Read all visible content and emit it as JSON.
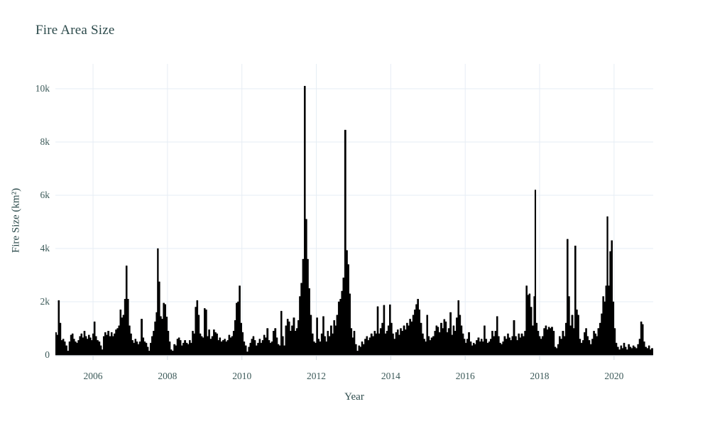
{
  "page": {
    "background": "#ffffff"
  },
  "chart": {
    "title": "Fire Area Size",
    "x_axis_title": "Year",
    "y_axis_title": "Fire Size (km²)"
  },
  "chart_data": {
    "type": "area",
    "title": "Fire Area Size",
    "xlabel": "Year",
    "ylabel": "Fire Size (km²)",
    "legend": null,
    "grid": true,
    "xlim": [
      2004.988,
      2021.052
    ],
    "ylim": [
      0,
      10933
    ],
    "x_ticks": [
      {
        "v": 2006,
        "label": "2006"
      },
      {
        "v": 2008,
        "label": "2008"
      },
      {
        "v": 2010,
        "label": "2010"
      },
      {
        "v": 2012,
        "label": "2012"
      },
      {
        "v": 2014,
        "label": "2014"
      },
      {
        "v": 2016,
        "label": "2016"
      },
      {
        "v": 2018,
        "label": "2018"
      },
      {
        "v": 2020,
        "label": "2020"
      }
    ],
    "y_ticks": [
      {
        "v": 0,
        "label": "0"
      },
      {
        "v": 2000,
        "label": "2k"
      },
      {
        "v": 4000,
        "label": "4k"
      },
      {
        "v": 6000,
        "label": "6k"
      },
      {
        "v": 8000,
        "label": "8k"
      },
      {
        "v": 10000,
        "label": "10k"
      }
    ],
    "colors": {
      "series": "#000000",
      "grid": "#e6edf4",
      "axis_line": "#c9d0d8",
      "tick_mark": "#d4dde6",
      "text": "#2c4a4b",
      "tick_text": "#3c5a59",
      "background": "#ffffff"
    },
    "points": [
      [
        2005.0,
        850
      ],
      [
        2005.04,
        750
      ],
      [
        2005.08,
        2050
      ],
      [
        2005.12,
        1200
      ],
      [
        2005.16,
        550
      ],
      [
        2005.2,
        600
      ],
      [
        2005.24,
        500
      ],
      [
        2005.28,
        350
      ],
      [
        2005.33,
        150
      ],
      [
        2005.37,
        500
      ],
      [
        2005.41,
        750
      ],
      [
        2005.45,
        800
      ],
      [
        2005.49,
        600
      ],
      [
        2005.53,
        500
      ],
      [
        2005.57,
        450
      ],
      [
        2005.61,
        550
      ],
      [
        2005.65,
        700
      ],
      [
        2005.69,
        800
      ],
      [
        2005.73,
        650
      ],
      [
        2005.77,
        900
      ],
      [
        2005.81,
        700
      ],
      [
        2005.85,
        600
      ],
      [
        2005.89,
        750
      ],
      [
        2005.93,
        650
      ],
      [
        2005.97,
        550
      ],
      [
        2006.0,
        800
      ],
      [
        2006.04,
        1250
      ],
      [
        2006.08,
        700
      ],
      [
        2006.12,
        550
      ],
      [
        2006.17,
        500
      ],
      [
        2006.21,
        350
      ],
      [
        2006.25,
        200
      ],
      [
        2006.29,
        700
      ],
      [
        2006.33,
        850
      ],
      [
        2006.37,
        750
      ],
      [
        2006.41,
        900
      ],
      [
        2006.46,
        700
      ],
      [
        2006.5,
        850
      ],
      [
        2006.54,
        700
      ],
      [
        2006.58,
        800
      ],
      [
        2006.62,
        950
      ],
      [
        2006.66,
        1000
      ],
      [
        2006.7,
        1100
      ],
      [
        2006.74,
        1700
      ],
      [
        2006.78,
        1400
      ],
      [
        2006.82,
        1500
      ],
      [
        2006.86,
        2100
      ],
      [
        2006.9,
        3350
      ],
      [
        2006.94,
        2100
      ],
      [
        2006.98,
        1100
      ],
      [
        2007.02,
        800
      ],
      [
        2007.06,
        550
      ],
      [
        2007.1,
        450
      ],
      [
        2007.14,
        600
      ],
      [
        2007.18,
        500
      ],
      [
        2007.22,
        400
      ],
      [
        2007.26,
        500
      ],
      [
        2007.31,
        1350
      ],
      [
        2007.35,
        650
      ],
      [
        2007.39,
        500
      ],
      [
        2007.43,
        450
      ],
      [
        2007.47,
        300
      ],
      [
        2007.51,
        150
      ],
      [
        2007.55,
        450
      ],
      [
        2007.59,
        700
      ],
      [
        2007.63,
        900
      ],
      [
        2007.67,
        1250
      ],
      [
        2007.71,
        1600
      ],
      [
        2007.74,
        4000
      ],
      [
        2007.78,
        2750
      ],
      [
        2007.82,
        1450
      ],
      [
        2007.86,
        1350
      ],
      [
        2007.9,
        1950
      ],
      [
        2007.94,
        1900
      ],
      [
        2007.98,
        1430
      ],
      [
        2008.02,
        900
      ],
      [
        2008.06,
        500
      ],
      [
        2008.1,
        200
      ],
      [
        2008.14,
        150
      ],
      [
        2008.19,
        400
      ],
      [
        2008.23,
        350
      ],
      [
        2008.27,
        600
      ],
      [
        2008.31,
        650
      ],
      [
        2008.35,
        550
      ],
      [
        2008.39,
        350
      ],
      [
        2008.43,
        450
      ],
      [
        2008.47,
        550
      ],
      [
        2008.52,
        450
      ],
      [
        2008.56,
        400
      ],
      [
        2008.6,
        550
      ],
      [
        2008.64,
        450
      ],
      [
        2008.68,
        900
      ],
      [
        2008.72,
        800
      ],
      [
        2008.76,
        1800
      ],
      [
        2008.8,
        2050
      ],
      [
        2008.84,
        1500
      ],
      [
        2008.88,
        800
      ],
      [
        2008.92,
        700
      ],
      [
        2008.96,
        650
      ],
      [
        2009.0,
        1750
      ],
      [
        2009.04,
        1700
      ],
      [
        2009.08,
        700
      ],
      [
        2009.12,
        950
      ],
      [
        2009.16,
        600
      ],
      [
        2009.21,
        700
      ],
      [
        2009.25,
        950
      ],
      [
        2009.29,
        850
      ],
      [
        2009.33,
        800
      ],
      [
        2009.37,
        550
      ],
      [
        2009.41,
        650
      ],
      [
        2009.45,
        500
      ],
      [
        2009.5,
        550
      ],
      [
        2009.54,
        600
      ],
      [
        2009.58,
        500
      ],
      [
        2009.62,
        550
      ],
      [
        2009.66,
        750
      ],
      [
        2009.7,
        650
      ],
      [
        2009.74,
        700
      ],
      [
        2009.78,
        900
      ],
      [
        2009.82,
        1300
      ],
      [
        2009.86,
        1950
      ],
      [
        2009.9,
        2000
      ],
      [
        2009.94,
        2600
      ],
      [
        2009.98,
        1200
      ],
      [
        2010.02,
        850
      ],
      [
        2010.06,
        500
      ],
      [
        2010.1,
        350
      ],
      [
        2010.15,
        120
      ],
      [
        2010.19,
        300
      ],
      [
        2010.23,
        450
      ],
      [
        2010.27,
        600
      ],
      [
        2010.31,
        700
      ],
      [
        2010.35,
        550
      ],
      [
        2010.39,
        350
      ],
      [
        2010.44,
        450
      ],
      [
        2010.48,
        600
      ],
      [
        2010.52,
        450
      ],
      [
        2010.56,
        550
      ],
      [
        2010.6,
        750
      ],
      [
        2010.64,
        650
      ],
      [
        2010.69,
        1000
      ],
      [
        2010.73,
        550
      ],
      [
        2010.77,
        450
      ],
      [
        2010.81,
        500
      ],
      [
        2010.85,
        900
      ],
      [
        2010.9,
        1000
      ],
      [
        2010.94,
        650
      ],
      [
        2010.98,
        400
      ],
      [
        2011.02,
        350
      ],
      [
        2011.06,
        1650
      ],
      [
        2011.1,
        700
      ],
      [
        2011.14,
        350
      ],
      [
        2011.19,
        1100
      ],
      [
        2011.23,
        1350
      ],
      [
        2011.27,
        1250
      ],
      [
        2011.31,
        900
      ],
      [
        2011.35,
        1100
      ],
      [
        2011.4,
        1400
      ],
      [
        2011.44,
        900
      ],
      [
        2011.48,
        1000
      ],
      [
        2011.52,
        1300
      ],
      [
        2011.56,
        2200
      ],
      [
        2011.6,
        2700
      ],
      [
        2011.65,
        3600
      ],
      [
        2011.69,
        10100
      ],
      [
        2011.73,
        5100
      ],
      [
        2011.77,
        3600
      ],
      [
        2011.81,
        2500
      ],
      [
        2011.85,
        1500
      ],
      [
        2011.9,
        800
      ],
      [
        2011.94,
        500
      ],
      [
        2011.98,
        450
      ],
      [
        2012.02,
        1400
      ],
      [
        2012.06,
        600
      ],
      [
        2012.1,
        500
      ],
      [
        2012.15,
        800
      ],
      [
        2012.19,
        1450
      ],
      [
        2012.23,
        700
      ],
      [
        2012.27,
        500
      ],
      [
        2012.31,
        900
      ],
      [
        2012.35,
        700
      ],
      [
        2012.4,
        1100
      ],
      [
        2012.44,
        800
      ],
      [
        2012.48,
        1300
      ],
      [
        2012.52,
        1100
      ],
      [
        2012.56,
        1500
      ],
      [
        2012.61,
        2000
      ],
      [
        2012.65,
        2100
      ],
      [
        2012.69,
        2400
      ],
      [
        2012.73,
        2900
      ],
      [
        2012.78,
        8450
      ],
      [
        2012.82,
        3930
      ],
      [
        2012.86,
        3400
      ],
      [
        2012.9,
        2300
      ],
      [
        2012.94,
        1000
      ],
      [
        2012.98,
        650
      ],
      [
        2013.02,
        900
      ],
      [
        2013.06,
        400
      ],
      [
        2013.11,
        150
      ],
      [
        2013.15,
        350
      ],
      [
        2013.19,
        300
      ],
      [
        2013.23,
        500
      ],
      [
        2013.27,
        400
      ],
      [
        2013.32,
        600
      ],
      [
        2013.36,
        700
      ],
      [
        2013.4,
        550
      ],
      [
        2013.44,
        650
      ],
      [
        2013.48,
        800
      ],
      [
        2013.53,
        700
      ],
      [
        2013.57,
        900
      ],
      [
        2013.61,
        800
      ],
      [
        2013.65,
        1820
      ],
      [
        2013.69,
        800
      ],
      [
        2013.73,
        1000
      ],
      [
        2013.78,
        1200
      ],
      [
        2013.82,
        1870
      ],
      [
        2013.86,
        800
      ],
      [
        2013.9,
        900
      ],
      [
        2013.94,
        1100
      ],
      [
        2013.98,
        1890
      ],
      [
        2014.02,
        1200
      ],
      [
        2014.06,
        800
      ],
      [
        2014.1,
        600
      ],
      [
        2014.15,
        850
      ],
      [
        2014.19,
        950
      ],
      [
        2014.23,
        750
      ],
      [
        2014.27,
        1000
      ],
      [
        2014.31,
        900
      ],
      [
        2014.36,
        1100
      ],
      [
        2014.4,
        950
      ],
      [
        2014.44,
        1200
      ],
      [
        2014.48,
        1100
      ],
      [
        2014.52,
        1350
      ],
      [
        2014.56,
        1250
      ],
      [
        2014.61,
        1500
      ],
      [
        2014.65,
        1700
      ],
      [
        2014.69,
        1900
      ],
      [
        2014.73,
        2100
      ],
      [
        2014.77,
        1700
      ],
      [
        2014.81,
        1200
      ],
      [
        2014.86,
        800
      ],
      [
        2014.9,
        600
      ],
      [
        2014.94,
        500
      ],
      [
        2014.98,
        1500
      ],
      [
        2015.02,
        700
      ],
      [
        2015.06,
        550
      ],
      [
        2015.1,
        650
      ],
      [
        2015.15,
        700
      ],
      [
        2015.19,
        900
      ],
      [
        2015.23,
        1100
      ],
      [
        2015.27,
        1050
      ],
      [
        2015.31,
        850
      ],
      [
        2015.36,
        1200
      ],
      [
        2015.4,
        1000
      ],
      [
        2015.44,
        1340
      ],
      [
        2015.48,
        1250
      ],
      [
        2015.52,
        850
      ],
      [
        2015.56,
        1000
      ],
      [
        2015.61,
        1600
      ],
      [
        2015.65,
        750
      ],
      [
        2015.69,
        1100
      ],
      [
        2015.73,
        900
      ],
      [
        2015.78,
        1400
      ],
      [
        2015.82,
        2050
      ],
      [
        2015.86,
        1500
      ],
      [
        2015.9,
        1100
      ],
      [
        2015.94,
        800
      ],
      [
        2015.98,
        600
      ],
      [
        2016.02,
        450
      ],
      [
        2016.06,
        600
      ],
      [
        2016.1,
        850
      ],
      [
        2016.15,
        500
      ],
      [
        2016.19,
        350
      ],
      [
        2016.23,
        450
      ],
      [
        2016.27,
        400
      ],
      [
        2016.31,
        550
      ],
      [
        2016.36,
        650
      ],
      [
        2016.4,
        500
      ],
      [
        2016.44,
        600
      ],
      [
        2016.48,
        500
      ],
      [
        2016.52,
        1100
      ],
      [
        2016.56,
        600
      ],
      [
        2016.61,
        450
      ],
      [
        2016.65,
        500
      ],
      [
        2016.69,
        600
      ],
      [
        2016.73,
        900
      ],
      [
        2016.77,
        700
      ],
      [
        2016.82,
        900
      ],
      [
        2016.86,
        1450
      ],
      [
        2016.9,
        700
      ],
      [
        2016.94,
        450
      ],
      [
        2016.98,
        400
      ],
      [
        2017.02,
        500
      ],
      [
        2017.06,
        700
      ],
      [
        2017.11,
        600
      ],
      [
        2017.15,
        800
      ],
      [
        2017.19,
        650
      ],
      [
        2017.23,
        550
      ],
      [
        2017.27,
        700
      ],
      [
        2017.31,
        1300
      ],
      [
        2017.36,
        700
      ],
      [
        2017.4,
        550
      ],
      [
        2017.44,
        800
      ],
      [
        2017.48,
        650
      ],
      [
        2017.52,
        800
      ],
      [
        2017.57,
        700
      ],
      [
        2017.61,
        900
      ],
      [
        2017.65,
        2600
      ],
      [
        2017.69,
        2250
      ],
      [
        2017.73,
        2300
      ],
      [
        2017.77,
        1800
      ],
      [
        2017.82,
        1100
      ],
      [
        2017.86,
        2200
      ],
      [
        2017.88,
        6200
      ],
      [
        2017.92,
        1200
      ],
      [
        2017.96,
        900
      ],
      [
        2018.0,
        700
      ],
      [
        2018.04,
        600
      ],
      [
        2018.08,
        700
      ],
      [
        2018.13,
        1000
      ],
      [
        2018.17,
        1100
      ],
      [
        2018.21,
        950
      ],
      [
        2018.25,
        1050
      ],
      [
        2018.29,
        1000
      ],
      [
        2018.33,
        1050
      ],
      [
        2018.38,
        900
      ],
      [
        2018.42,
        300
      ],
      [
        2018.46,
        250
      ],
      [
        2018.5,
        400
      ],
      [
        2018.54,
        700
      ],
      [
        2018.58,
        600
      ],
      [
        2018.63,
        900
      ],
      [
        2018.67,
        700
      ],
      [
        2018.71,
        1200
      ],
      [
        2018.75,
        4350
      ],
      [
        2018.79,
        2200
      ],
      [
        2018.83,
        1100
      ],
      [
        2018.88,
        1500
      ],
      [
        2018.92,
        1000
      ],
      [
        2018.96,
        4100
      ],
      [
        2019.0,
        1700
      ],
      [
        2019.04,
        1500
      ],
      [
        2019.08,
        600
      ],
      [
        2019.13,
        450
      ],
      [
        2019.17,
        550
      ],
      [
        2019.21,
        850
      ],
      [
        2019.25,
        1000
      ],
      [
        2019.29,
        700
      ],
      [
        2019.33,
        550
      ],
      [
        2019.38,
        400
      ],
      [
        2019.42,
        600
      ],
      [
        2019.46,
        900
      ],
      [
        2019.5,
        800
      ],
      [
        2019.54,
        700
      ],
      [
        2019.58,
        1000
      ],
      [
        2019.63,
        1200
      ],
      [
        2019.67,
        1550
      ],
      [
        2019.71,
        2200
      ],
      [
        2019.75,
        2000
      ],
      [
        2019.79,
        2600
      ],
      [
        2019.82,
        5200
      ],
      [
        2019.86,
        2600
      ],
      [
        2019.9,
        3890
      ],
      [
        2019.94,
        4300
      ],
      [
        2019.98,
        2000
      ],
      [
        2020.02,
        1000
      ],
      [
        2020.06,
        450
      ],
      [
        2020.1,
        300
      ],
      [
        2020.15,
        200
      ],
      [
        2020.19,
        350
      ],
      [
        2020.23,
        250
      ],
      [
        2020.27,
        450
      ],
      [
        2020.31,
        300
      ],
      [
        2020.35,
        200
      ],
      [
        2020.4,
        400
      ],
      [
        2020.44,
        300
      ],
      [
        2020.48,
        250
      ],
      [
        2020.52,
        350
      ],
      [
        2020.56,
        300
      ],
      [
        2020.6,
        250
      ],
      [
        2020.65,
        400
      ],
      [
        2020.69,
        600
      ],
      [
        2020.73,
        1250
      ],
      [
        2020.77,
        1150
      ],
      [
        2020.81,
        500
      ],
      [
        2020.85,
        300
      ],
      [
        2020.9,
        250
      ],
      [
        2020.94,
        350
      ],
      [
        2020.98,
        200
      ],
      [
        2021.02,
        250
      ]
    ]
  }
}
